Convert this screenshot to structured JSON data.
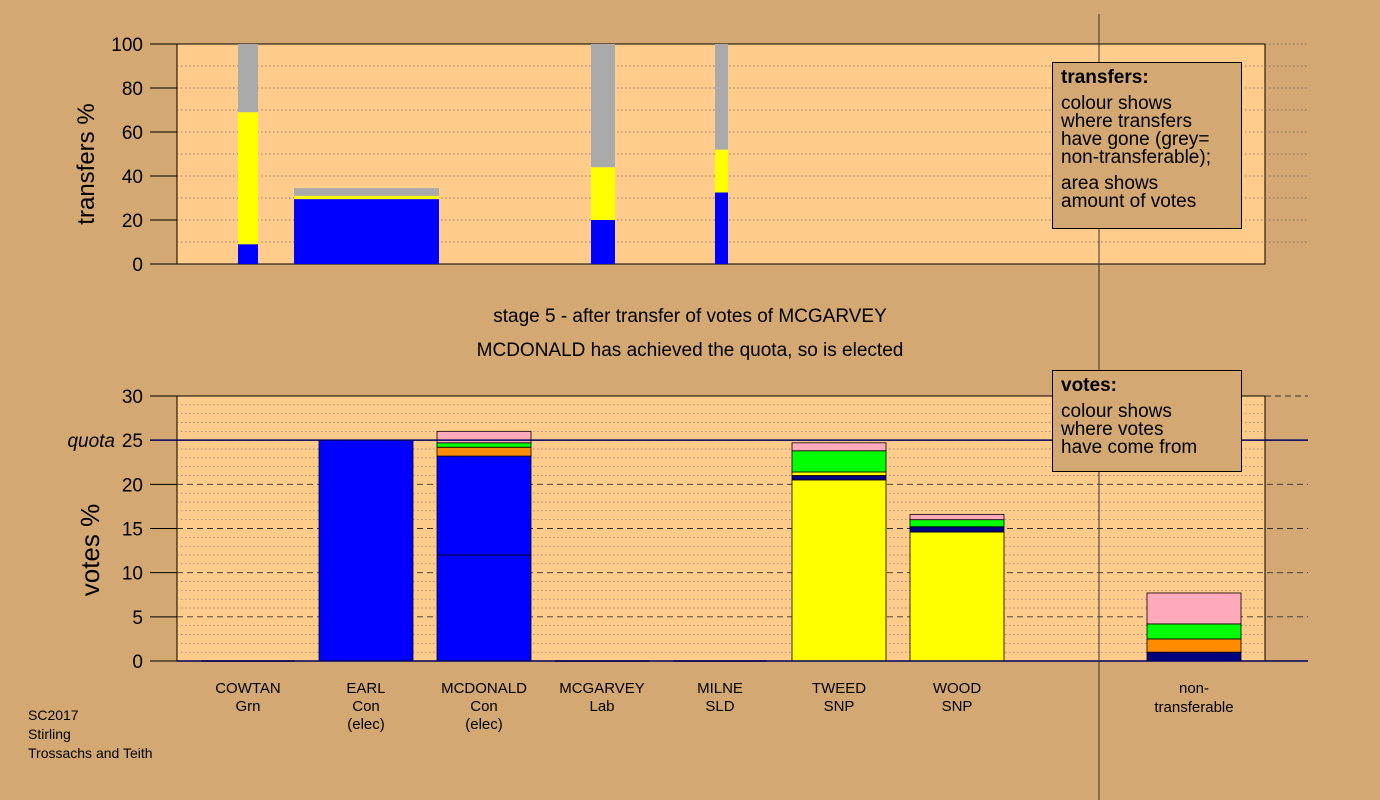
{
  "header": {
    "stage_title": "stage 5 - after transfer of votes of MCGARVEY",
    "stage_subtitle": "MCDONALD has achieved the quota, so is elected"
  },
  "legends": {
    "transfers": {
      "heading": "transfers:",
      "lines": [
        "colour shows",
        "where transfers",
        "have gone (grey=",
        "non-transferable);"
      ],
      "lines2": [
        "area shows",
        "amount of votes"
      ]
    },
    "votes": {
      "heading": "votes:",
      "lines": [
        "colour shows",
        "where votes",
        "have come from"
      ]
    }
  },
  "footer": {
    "lines": [
      "SC2017",
      "Stirling",
      "Trossachs and Teith"
    ]
  },
  "colors": {
    "background": "#D4A872",
    "plot_bg": "#FFCC8C",
    "con": "#0000FF",
    "snp": "#FFFF00",
    "non_transferable": "#AAAAAA",
    "green": "#00FF00",
    "orange": "#FF8C00",
    "pink": "#FFAABB",
    "navy": "#000080"
  },
  "chart_data": [
    {
      "type": "bar",
      "name": "transfers",
      "ylabel": "transfers %",
      "ylim": [
        0,
        100
      ],
      "yticks": [
        0,
        20,
        40,
        60,
        80,
        100
      ],
      "bars": [
        {
          "candidate": "COWTAN",
          "segments": [
            {
              "color": "con",
              "value": 9
            },
            {
              "color": "snp",
              "value": 60
            },
            {
              "color": "non_transferable",
              "value": 31
            }
          ]
        },
        {
          "candidate": "EARL",
          "segments": [
            {
              "color": "con",
              "value": 29.5
            },
            {
              "color": "snp",
              "value": 1.5
            },
            {
              "color": "non_transferable",
              "value": 3.5
            }
          ]
        },
        {
          "candidate": "MILNE",
          "segments": [
            {
              "color": "con",
              "value": 20
            },
            {
              "color": "snp",
              "value": 24
            },
            {
              "color": "non_transferable",
              "value": 56
            }
          ]
        },
        {
          "candidate": "MCGARVEY",
          "segments": [
            {
              "color": "con",
              "value": 32.5
            },
            {
              "color": "snp",
              "value": 19.5
            },
            {
              "color": "non_transferable",
              "value": 48
            }
          ]
        }
      ]
    },
    {
      "type": "bar",
      "name": "votes",
      "ylabel": "votes %",
      "ylim": [
        0,
        30
      ],
      "yticks": [
        0,
        5,
        10,
        15,
        20,
        25,
        30
      ],
      "quota": 25,
      "quota_label": "quota",
      "categories": [
        {
          "name": "COWTAN",
          "party": "Grn",
          "status": ""
        },
        {
          "name": "EARL",
          "party": "Con",
          "status": "(elec)"
        },
        {
          "name": "MCDONALD",
          "party": "Con",
          "status": "(elec)"
        },
        {
          "name": "MCGARVEY",
          "party": "Lab",
          "status": ""
        },
        {
          "name": "MILNE",
          "party": "SLD",
          "status": ""
        },
        {
          "name": "TWEED",
          "party": "SNP",
          "status": ""
        },
        {
          "name": "WOOD",
          "party": "SNP",
          "status": ""
        }
      ],
      "bars": [
        {
          "candidate": "COWTAN",
          "segments": []
        },
        {
          "candidate": "EARL",
          "segments": [
            {
              "color": "con",
              "value": 25
            }
          ]
        },
        {
          "candidate": "MCDONALD",
          "segments": [
            {
              "color": "con",
              "value": 12
            },
            {
              "color": "con",
              "value": 11.2
            },
            {
              "color": "orange",
              "value": 1.0
            },
            {
              "color": "green",
              "value": 0.5
            },
            {
              "color": "pink",
              "value": 1.3
            }
          ]
        },
        {
          "candidate": "MCGARVEY",
          "segments": []
        },
        {
          "candidate": "MILNE",
          "segments": []
        },
        {
          "candidate": "TWEED",
          "segments": [
            {
              "color": "snp",
              "value": 20.5
            },
            {
              "color": "navy",
              "value": 0.5
            },
            {
              "color": "snp",
              "value": 0.4
            },
            {
              "color": "green",
              "value": 2.4
            },
            {
              "color": "pink",
              "value": 0.9
            }
          ]
        },
        {
          "candidate": "WOOD",
          "segments": [
            {
              "color": "snp",
              "value": 14.6
            },
            {
              "color": "navy",
              "value": 0.6
            },
            {
              "color": "green",
              "value": 0.8
            },
            {
              "color": "pink",
              "value": 0.6
            }
          ]
        }
      ],
      "non_transferable": {
        "label_lines": [
          "non-",
          "transferable"
        ],
        "segments": [
          {
            "color": "navy",
            "value": 1.0
          },
          {
            "color": "orange",
            "value": 1.5
          },
          {
            "color": "green",
            "value": 1.7
          },
          {
            "color": "pink",
            "value": 3.5
          }
        ]
      }
    }
  ]
}
